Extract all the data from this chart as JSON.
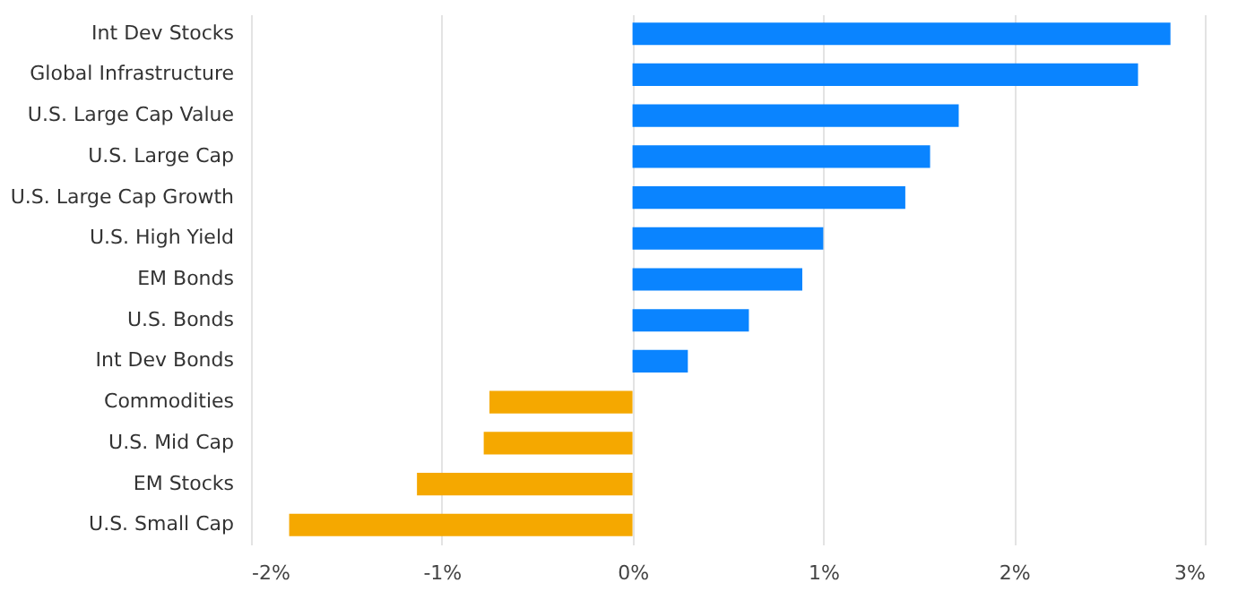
{
  "chart_data": {
    "type": "bar",
    "orientation": "horizontal",
    "categories": [
      "Int Dev Stocks",
      "Global Infrastructure",
      "U.S. Large Cap Value",
      "U.S. Large Cap",
      "U.S. Large Cap Growth",
      "U.S. High Yield",
      "EM Bonds",
      "U.S. Bonds",
      "Int Dev Bonds",
      "Commodities",
      "U.S. Mid Cap",
      "EM Stocks",
      "U.S. Small Cap"
    ],
    "values": [
      2.82,
      2.65,
      1.71,
      1.56,
      1.43,
      1.0,
      0.89,
      0.61,
      0.29,
      -0.75,
      -0.78,
      -1.13,
      -1.8
    ],
    "colors": [
      "#0a84ff",
      "#0a84ff",
      "#0a84ff",
      "#0a84ff",
      "#0a84ff",
      "#0a84ff",
      "#0a84ff",
      "#0a84ff",
      "#0a84ff",
      "#f5a800",
      "#f5a800",
      "#f5a800",
      "#f5a800"
    ],
    "xlim": [
      -2,
      3
    ],
    "xticks": [
      {
        "value": -2,
        "label": "-2%"
      },
      {
        "value": -1,
        "label": "-1%"
      },
      {
        "value": 0,
        "label": "0%"
      },
      {
        "value": 1,
        "label": "1%"
      },
      {
        "value": 2,
        "label": "2%"
      },
      {
        "value": 3,
        "label": "3%"
      }
    ],
    "grid": "x"
  }
}
